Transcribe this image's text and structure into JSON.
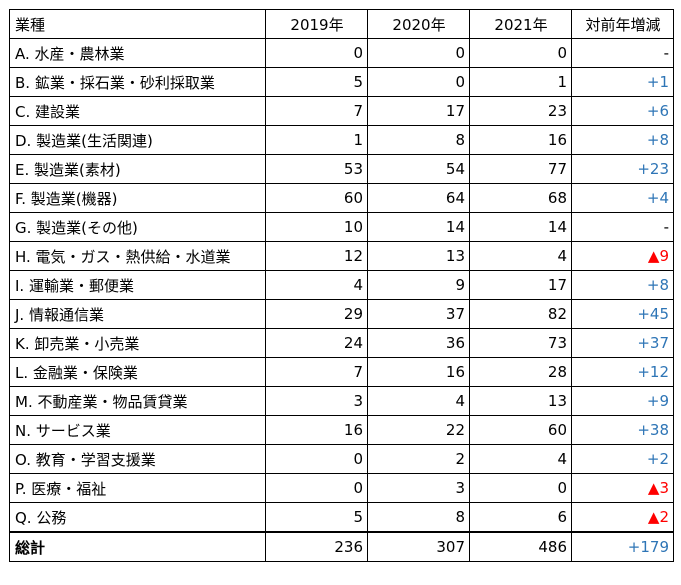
{
  "headers": {
    "category": "業種",
    "y2019": "2019年",
    "y2020": "2020年",
    "y2021": "2021年",
    "change": "対前年増減"
  },
  "rows": [
    {
      "name": "A. 水産・農林業",
      "y2019": "0",
      "y2020": "0",
      "y2021": "0",
      "change": "-",
      "tone": "dash"
    },
    {
      "name": "B. 鉱業・採石業・砂利採取業",
      "y2019": "5",
      "y2020": "0",
      "y2021": "1",
      "change": "+1",
      "tone": "pos"
    },
    {
      "name": "C. 建設業",
      "y2019": "7",
      "y2020": "17",
      "y2021": "23",
      "change": "+6",
      "tone": "pos"
    },
    {
      "name": "D. 製造業(生活関連)",
      "y2019": "1",
      "y2020": "8",
      "y2021": "16",
      "change": "+8",
      "tone": "pos"
    },
    {
      "name": "E. 製造業(素材)",
      "y2019": "53",
      "y2020": "54",
      "y2021": "77",
      "change": "+23",
      "tone": "pos"
    },
    {
      "name": "F. 製造業(機器)",
      "y2019": "60",
      "y2020": "64",
      "y2021": "68",
      "change": "+4",
      "tone": "pos"
    },
    {
      "name": "G. 製造業(その他)",
      "y2019": "10",
      "y2020": "14",
      "y2021": "14",
      "change": "-",
      "tone": "dash"
    },
    {
      "name": "H. 電気・ガス・熱供給・水道業",
      "y2019": "12",
      "y2020": "13",
      "y2021": "4",
      "change": "▲9",
      "tone": "neg"
    },
    {
      "name": "I. 運輸業・郵便業",
      "y2019": "4",
      "y2020": "9",
      "y2021": "17",
      "change": "+8",
      "tone": "pos"
    },
    {
      "name": "J. 情報通信業",
      "y2019": "29",
      "y2020": "37",
      "y2021": "82",
      "change": "+45",
      "tone": "pos"
    },
    {
      "name": "K. 卸売業・小売業",
      "y2019": "24",
      "y2020": "36",
      "y2021": "73",
      "change": "+37",
      "tone": "pos"
    },
    {
      "name": "L. 金融業・保険業",
      "y2019": "7",
      "y2020": "16",
      "y2021": "28",
      "change": "+12",
      "tone": "pos"
    },
    {
      "name": "M. 不動産業・物品賃貸業",
      "y2019": "3",
      "y2020": "4",
      "y2021": "13",
      "change": "+9",
      "tone": "pos"
    },
    {
      "name": "N. サービス業",
      "y2019": "16",
      "y2020": "22",
      "y2021": "60",
      "change": "+38",
      "tone": "pos"
    },
    {
      "name": "O. 教育・学習支援業",
      "y2019": "0",
      "y2020": "2",
      "y2021": "4",
      "change": "+2",
      "tone": "pos"
    },
    {
      "name": "P. 医療・福祉",
      "y2019": "0",
      "y2020": "3",
      "y2021": "0",
      "change": "▲3",
      "tone": "neg"
    },
    {
      "name": "Q. 公務",
      "y2019": "5",
      "y2020": "8",
      "y2021": "6",
      "change": "▲2",
      "tone": "neg"
    }
  ],
  "total": {
    "name": "総計",
    "y2019": "236",
    "y2020": "307",
    "y2021": "486",
    "change": "+179",
    "tone": "pos"
  },
  "colors": {
    "positive": "#2e75b6",
    "negative": "#ff0000",
    "border": "#000000"
  }
}
